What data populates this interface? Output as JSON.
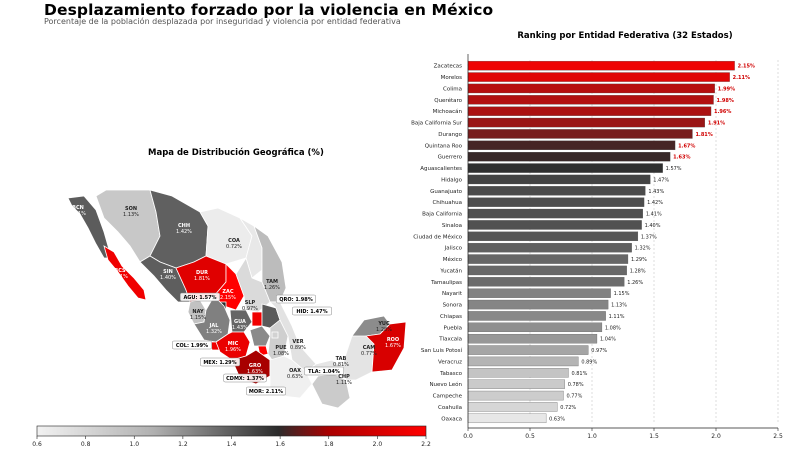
{
  "title": "Desplazamiento forzado por la violencia en México",
  "subtitle": "Porcentaje de la población desplazada por inseguridad y violencia por entidad federativa",
  "map": {
    "title": "Mapa de Distribución Geográfica (%)",
    "colorbar_ticks": [
      "0.6",
      "0.8",
      "1.0",
      "1.2",
      "1.4",
      "1.6",
      "1.8",
      "2.0",
      "2.2"
    ],
    "colorbar_range": [
      0.6,
      2.2
    ],
    "colors": {
      "low": "#ededed",
      "mid": "#5a5a5a",
      "dark": "#2b2b2b",
      "high": "#ff0000"
    },
    "labels": [
      {
        "code": "BCN",
        "value": "1.41%"
      },
      {
        "code": "SON",
        "value": "1.13%"
      },
      {
        "code": "CHH",
        "value": "1.42%"
      },
      {
        "code": "COA",
        "value": "0.72%"
      },
      {
        "code": "BCS",
        "value": "1.91%"
      },
      {
        "code": "SIN",
        "value": "1.40%"
      },
      {
        "code": "DUR",
        "value": "1.81%"
      },
      {
        "code": "TAM",
        "value": "1.26%"
      },
      {
        "code": "ZAC",
        "value": "2.15%"
      },
      {
        "code": "AGU:",
        "value": "1.57%"
      },
      {
        "code": "SLP",
        "value": "0.97%"
      },
      {
        "code": "QRO:",
        "value": "1.98%"
      },
      {
        "code": "NAY",
        "value": "1.15%"
      },
      {
        "code": "GUA",
        "value": "1.43%"
      },
      {
        "code": "HID:",
        "value": "1.47%"
      },
      {
        "code": "JAL",
        "value": "1.32%"
      },
      {
        "code": "YUC",
        "value": "1.28%"
      },
      {
        "code": "COL:",
        "value": "1.99%"
      },
      {
        "code": "MIC",
        "value": "1.96%"
      },
      {
        "code": "PUE",
        "value": "1.08%"
      },
      {
        "code": "VER",
        "value": "0.89%"
      },
      {
        "code": "ROO",
        "value": "1.67%"
      },
      {
        "code": "CAM",
        "value": "0.77%"
      },
      {
        "code": "MEX:",
        "value": "1.29%"
      },
      {
        "code": "GRO",
        "value": "1.63%"
      },
      {
        "code": "TAB",
        "value": "0.81%"
      },
      {
        "code": "CDMX:",
        "value": "1.37%"
      },
      {
        "code": "OAX",
        "value": "0.63%"
      },
      {
        "code": "TLA:",
        "value": "1.04%"
      },
      {
        "code": "CHP",
        "value": "1.11%"
      },
      {
        "code": "MOR:",
        "value": "2.11%"
      }
    ]
  },
  "chart_data": {
    "type": "bar",
    "orientation": "horizontal",
    "title": "Ranking por Entidad Federativa (32 Estados)",
    "categories": [
      "Zacatecas",
      "Morelos",
      "Colima",
      "Querétaro",
      "Michoacán",
      "Baja California Sur",
      "Durango",
      "Quintana Roo",
      "Guerrero",
      "Aguascalientes",
      "Hidalgo",
      "Guanajuato",
      "Chihuahua",
      "Baja California",
      "Sinaloa",
      "Ciudad de México",
      "Jalisco",
      "México",
      "Yucatán",
      "Tamaulipas",
      "Nayarit",
      "Sonora",
      "Chiapas",
      "Puebla",
      "Tlaxcala",
      "San Luis Potosí",
      "Veracruz",
      "Tabasco",
      "Nuevo León",
      "Campeche",
      "Coahuila",
      "Oaxaca"
    ],
    "values": [
      2.15,
      2.11,
      1.99,
      1.98,
      1.96,
      1.91,
      1.81,
      1.67,
      1.63,
      1.57,
      1.47,
      1.43,
      1.42,
      1.41,
      1.4,
      1.37,
      1.32,
      1.29,
      1.28,
      1.26,
      1.15,
      1.13,
      1.11,
      1.08,
      1.04,
      0.97,
      0.89,
      0.81,
      0.78,
      0.77,
      0.72,
      0.63
    ],
    "value_labels": [
      "2.15%",
      "2.11%",
      "1.99%",
      "1.98%",
      "1.96%",
      "1.91%",
      "1.81%",
      "1.67%",
      "1.63%",
      "1.57%",
      "1.47%",
      "1.43%",
      "1.42%",
      "1.41%",
      "1.40%",
      "1.37%",
      "1.32%",
      "1.29%",
      "1.28%",
      "1.26%",
      "1.15%",
      "1.13%",
      "1.11%",
      "1.08%",
      "1.04%",
      "0.97%",
      "0.89%",
      "0.81%",
      "0.78%",
      "0.77%",
      "0.72%",
      "0.63%"
    ],
    "xlim": [
      0,
      2.5
    ],
    "xticks": [
      "0.0",
      "0.5",
      "1.0",
      "1.5",
      "2.0",
      "2.5"
    ],
    "grid": "vertical dashed",
    "colorscale": "grey to red by value"
  }
}
